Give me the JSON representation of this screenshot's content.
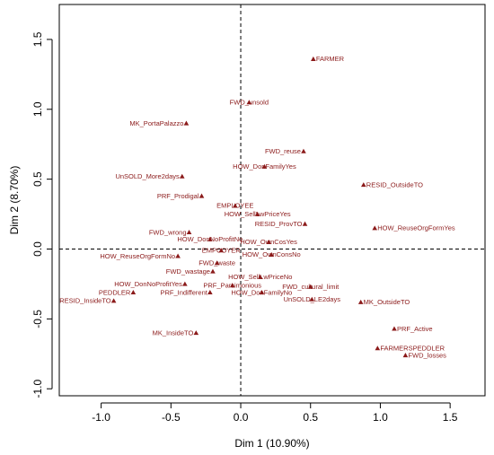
{
  "chart_data": {
    "type": "scatter",
    "title": "",
    "xlabel": "Dim 1 (10.90%)",
    "ylabel": "Dim 2 (8.70%)",
    "xlim": [
      -1.3,
      1.75
    ],
    "ylim": [
      -1.05,
      1.75
    ],
    "x_ticks": [
      -1.0,
      -0.5,
      0.0,
      0.5,
      1.0,
      1.5
    ],
    "x_tick_labels": [
      "-1.0",
      "-0.5",
      "0.0",
      "0.5",
      "1.0",
      "1.5"
    ],
    "y_ticks": [
      -1.0,
      -0.5,
      0.0,
      0.5,
      1.0,
      1.5
    ],
    "y_tick_labels": [
      "-1.0",
      "-0.5",
      "0.0",
      "0.5",
      "1.0",
      "1.5"
    ],
    "reference_lines": {
      "x": 0,
      "y": 0,
      "style": "dashed"
    },
    "marker": "triangle",
    "point_color": "#8b1a1a",
    "points": [
      {
        "label": "FARMER",
        "x": 0.52,
        "y": 1.36,
        "anchor": "start"
      },
      {
        "label": "FWD_unsold",
        "x": 0.06,
        "y": 1.05,
        "anchor": "middle"
      },
      {
        "label": "MK_PortaPalazzo",
        "x": -0.39,
        "y": 0.9,
        "anchor": "end"
      },
      {
        "label": "FWD_reuse",
        "x": 0.45,
        "y": 0.7,
        "anchor": "end"
      },
      {
        "label": "HOW_DonFamilyYes",
        "x": 0.17,
        "y": 0.59,
        "anchor": "middle"
      },
      {
        "label": "UnSOLD_More2days",
        "x": -0.42,
        "y": 0.52,
        "anchor": "end"
      },
      {
        "label": "RESID_OutsideTO",
        "x": 0.88,
        "y": 0.46,
        "anchor": "start"
      },
      {
        "label": "PRF_Prodigal",
        "x": -0.28,
        "y": 0.38,
        "anchor": "end"
      },
      {
        "label": "EMPLOYEE",
        "x": -0.04,
        "y": 0.31,
        "anchor": "middle"
      },
      {
        "label": "HOW_SellLwPriceYes",
        "x": 0.12,
        "y": 0.25,
        "anchor": "middle"
      },
      {
        "label": "RESID_ProvTO",
        "x": 0.46,
        "y": 0.18,
        "anchor": "end"
      },
      {
        "label": "HOW_ReuseOrgFormYes",
        "x": 0.96,
        "y": 0.15,
        "anchor": "start"
      },
      {
        "label": "FWD_wrong",
        "x": -0.37,
        "y": 0.12,
        "anchor": "end"
      },
      {
        "label": "HOW_DonNoProfitNo",
        "x": -0.22,
        "y": 0.07,
        "anchor": "middle"
      },
      {
        "label": "HOW_OwnCosYes",
        "x": 0.2,
        "y": 0.05,
        "anchor": "middle"
      },
      {
        "label": "EMPCOYER",
        "x": -0.14,
        "y": -0.01,
        "anchor": "middle"
      },
      {
        "label": "HOW_OwnConsNo",
        "x": 0.22,
        "y": -0.04,
        "anchor": "middle"
      },
      {
        "label": "HOW_ReuseOrgFormNo",
        "x": -0.45,
        "y": -0.05,
        "anchor": "end"
      },
      {
        "label": "FWD_waste",
        "x": -0.17,
        "y": -0.1,
        "anchor": "middle"
      },
      {
        "label": "FWD_wastage",
        "x": -0.2,
        "y": -0.16,
        "anchor": "end"
      },
      {
        "label": "HOW_SellLwPriceNo",
        "x": 0.14,
        "y": -0.2,
        "anchor": "middle"
      },
      {
        "label": "HOW_DonNoProfitYes",
        "x": -0.4,
        "y": -0.25,
        "anchor": "end"
      },
      {
        "label": "PRF_Parsimonious",
        "x": -0.06,
        "y": -0.26,
        "anchor": "middle"
      },
      {
        "label": "FWD_cultural_limit",
        "x": 0.5,
        "y": -0.27,
        "anchor": "middle"
      },
      {
        "label": "PRF_Indifferent",
        "x": -0.22,
        "y": -0.31,
        "anchor": "end"
      },
      {
        "label": "HOW_DonFamilyNo",
        "x": 0.15,
        "y": -0.31,
        "anchor": "middle"
      },
      {
        "label": "PEDDLER",
        "x": -0.77,
        "y": -0.31,
        "anchor": "end"
      },
      {
        "label": "UnSOLD_LE2days",
        "x": 0.51,
        "y": -0.36,
        "anchor": "middle"
      },
      {
        "label": "MK_OutsideTO",
        "x": 0.86,
        "y": -0.38,
        "anchor": "start"
      },
      {
        "label": "RESID_InsideTO",
        "x": -0.91,
        "y": -0.37,
        "anchor": "end"
      },
      {
        "label": "PRF_Active",
        "x": 1.1,
        "y": -0.57,
        "anchor": "start"
      },
      {
        "label": "MK_InsideTO",
        "x": -0.32,
        "y": -0.6,
        "anchor": "end"
      },
      {
        "label": "FARMERSPEDDLER",
        "x": 0.98,
        "y": -0.71,
        "anchor": "start"
      },
      {
        "label": "FWD_losses",
        "x": 1.18,
        "y": -0.76,
        "anchor": "start"
      }
    ]
  }
}
